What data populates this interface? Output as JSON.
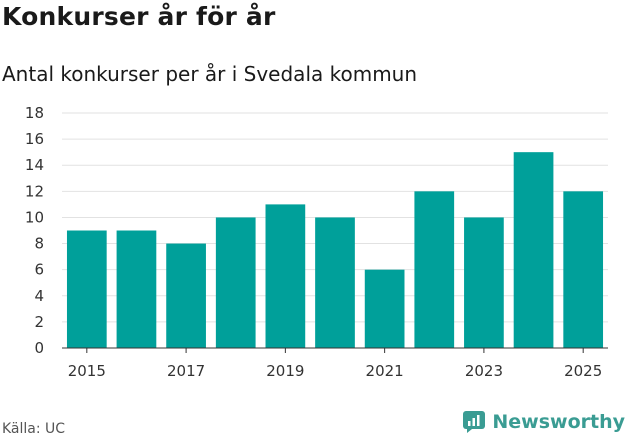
{
  "header": {
    "title": "Konkurser år för år",
    "subtitle": "Antal konkurser per år i Svedala kommun"
  },
  "footer": {
    "source": "Källa: UC",
    "brand": "Newsworthy"
  },
  "colors": {
    "bar": "#00a09a",
    "grid": "#e2e2e2",
    "brand": "#3a9c93"
  },
  "chart_data": {
    "type": "bar",
    "title": "Konkurser år för år",
    "subtitle": "Antal konkurser per år i Svedala kommun",
    "xlabel": "",
    "ylabel": "",
    "categories": [
      "2015",
      "2016",
      "2017",
      "2018",
      "2019",
      "2020",
      "2021",
      "2022",
      "2023",
      "2024",
      "2025"
    ],
    "values": [
      9,
      9,
      8,
      10,
      11,
      10,
      6,
      12,
      10,
      15,
      12
    ],
    "x_tick_labels": [
      "2015",
      "2017",
      "2019",
      "2021",
      "2023",
      "2025"
    ],
    "y_ticks": [
      0,
      2,
      4,
      6,
      8,
      10,
      12,
      14,
      16,
      18
    ],
    "ylim": [
      0,
      18
    ],
    "grid": true,
    "legend": "none"
  }
}
